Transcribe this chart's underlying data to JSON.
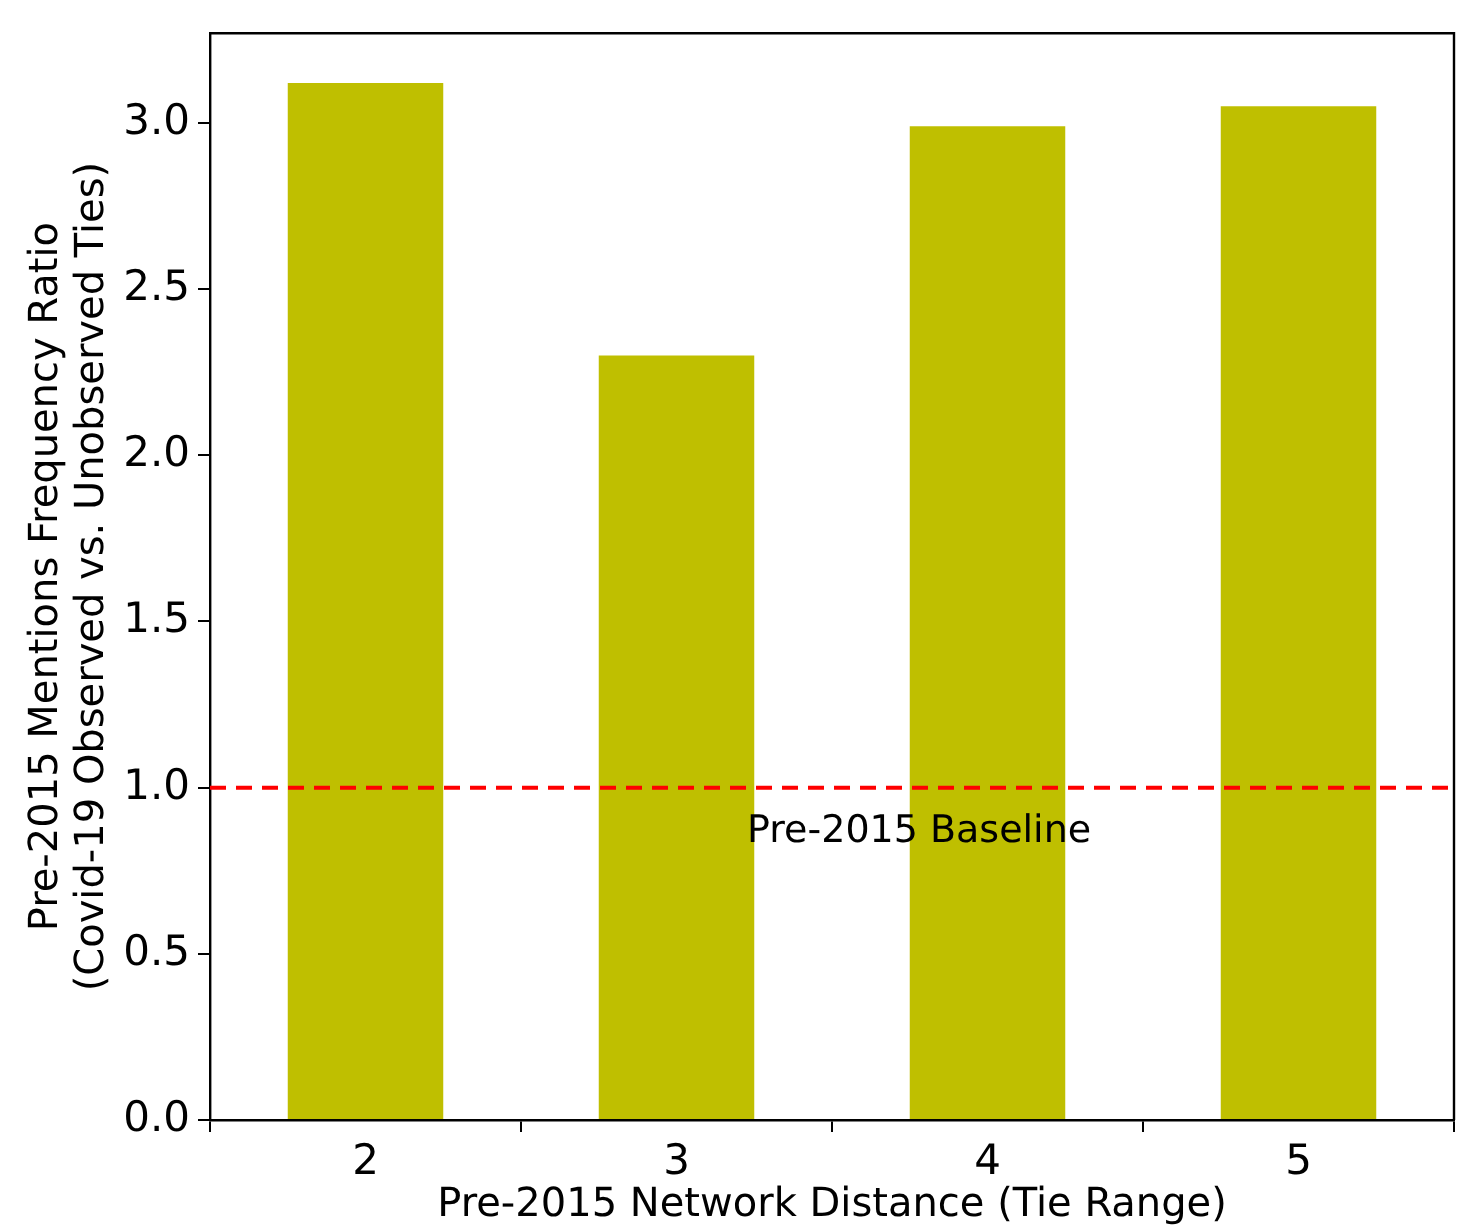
{
  "chart_data": {
    "type": "bar",
    "xlabel": "Pre-2015 Network Distance (Tie Range)",
    "ylabel": "Pre-2015 Mentions Frequency Ratio\n(Covid-19 Observed vs. Unobserved Ties)",
    "categories": [
      "2",
      "3",
      "4",
      "5"
    ],
    "values": [
      3.12,
      2.3,
      2.99,
      3.05
    ],
    "color": "#bfbf00",
    "ylim": [
      0,
      3.27
    ],
    "yticks": [
      {
        "value": 0,
        "label": "0.0"
      },
      0.5,
      {
        "value": 1,
        "label": "1.0"
      },
      1.5,
      {
        "value": 2,
        "label": "2.0"
      },
      2.5,
      {
        "value": 3,
        "label": "3.0"
      }
    ],
    "ref_lines": [
      {
        "axis": "y",
        "value": 1.0,
        "label": "Pre-2015 Baseline",
        "color": "#ff0000",
        "line_style": "dashed"
      }
    ]
  }
}
